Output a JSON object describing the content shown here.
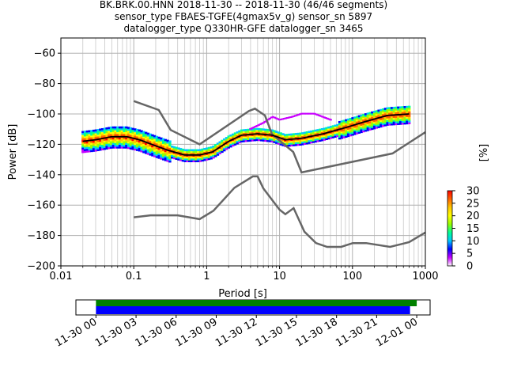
{
  "chart_data": [
    {
      "type": "heatmap",
      "title_lines": [
        "BK.BRK.00.HNN   2018-11-30 -- 2018-11-30  (46/46 segments)",
        "sensor_type FBAES-TGFE(4gmax5v_g) sensor_sn 5897",
        "datalogger_type Q330HR-GFE datalogger_sn 3465"
      ],
      "xlabel": "Period [s]",
      "ylabel": "Power [dB]",
      "xscale": "log",
      "xlim": [
        0.01,
        1000
      ],
      "ylim": [
        -200,
        -50
      ],
      "xticks": [
        {
          "value": 0.01,
          "label": "0.01"
        },
        {
          "value": 0.1,
          "label": "0.1"
        },
        {
          "value": 1,
          "label": "1"
        },
        {
          "value": 10,
          "label": "10"
        },
        {
          "value": 100,
          "label": "100"
        },
        {
          "value": 1000,
          "label": "1000"
        }
      ],
      "yticks": [
        {
          "value": -60,
          "label": "−60"
        },
        {
          "value": -80,
          "label": "−80"
        },
        {
          "value": -100,
          "label": "−100"
        },
        {
          "value": -120,
          "label": "−120"
        },
        {
          "value": -140,
          "label": "−140"
        },
        {
          "value": -160,
          "label": "−160"
        },
        {
          "value": -180,
          "label": "−180"
        },
        {
          "value": -200,
          "label": "−200"
        }
      ],
      "grid": true,
      "noise_model_high": [
        {
          "period": 0.1,
          "db": -91.5
        },
        {
          "period": 0.22,
          "db": -97.4
        },
        {
          "period": 0.32,
          "db": -110.5
        },
        {
          "period": 0.8,
          "db": -120
        },
        {
          "period": 3.8,
          "db": -98
        },
        {
          "period": 4.6,
          "db": -96.5
        },
        {
          "period": 6.3,
          "db": -101
        },
        {
          "period": 7.9,
          "db": -113.5
        },
        {
          "period": 15.4,
          "db": -125
        },
        {
          "period": 20,
          "db": -138.5
        },
        {
          "period": 354.8,
          "db": -126
        },
        {
          "period": 1000,
          "db": -112
        }
      ],
      "noise_model_low": [
        {
          "period": 0.1,
          "db": -168
        },
        {
          "period": 0.17,
          "db": -166.7
        },
        {
          "period": 0.4,
          "db": -166.7
        },
        {
          "period": 0.8,
          "db": -169.2
        },
        {
          "period": 1.24,
          "db": -163.7
        },
        {
          "period": 2.4,
          "db": -148.6
        },
        {
          "period": 4.3,
          "db": -141.1
        },
        {
          "period": 5,
          "db": -141.1
        },
        {
          "period": 6,
          "db": -149
        },
        {
          "period": 10,
          "db": -163
        },
        {
          "period": 12,
          "db": -166
        },
        {
          "period": 15.6,
          "db": -162
        },
        {
          "period": 21.9,
          "db": -177.5
        },
        {
          "period": 31.6,
          "db": -185
        },
        {
          "period": 45,
          "db": -187.5
        },
        {
          "period": 70,
          "db": -187.5
        },
        {
          "period": 101,
          "db": -185
        },
        {
          "period": 154,
          "db": -185
        },
        {
          "period": 328,
          "db": -187.5
        },
        {
          "period": 600,
          "db": -184.4
        },
        {
          "period": 1000,
          "db": -178
        }
      ],
      "mode_curve": [
        {
          "period": 0.02,
          "db": -118
        },
        {
          "period": 0.03,
          "db": -117
        },
        {
          "period": 0.05,
          "db": -115
        },
        {
          "period": 0.08,
          "db": -115
        },
        {
          "period": 0.12,
          "db": -117
        },
        {
          "period": 0.2,
          "db": -121
        },
        {
          "period": 0.3,
          "db": -124
        },
        {
          "period": 0.5,
          "db": -127
        },
        {
          "period": 0.8,
          "db": -127
        },
        {
          "period": 1.2,
          "db": -125
        },
        {
          "period": 2,
          "db": -118
        },
        {
          "period": 3,
          "db": -114
        },
        {
          "period": 5,
          "db": -113
        },
        {
          "period": 8,
          "db": -114
        },
        {
          "period": 12,
          "db": -117
        },
        {
          "period": 20,
          "db": -116
        },
        {
          "period": 40,
          "db": -113
        },
        {
          "period": 80,
          "db": -109
        },
        {
          "period": 150,
          "db": -105
        },
        {
          "period": 300,
          "db": -101
        },
        {
          "period": 600,
          "db": -100
        }
      ],
      "secondary_curve": [
        {
          "period": 4,
          "db": -110
        },
        {
          "period": 6,
          "db": -106
        },
        {
          "period": 8,
          "db": -102
        },
        {
          "period": 10,
          "db": -104
        },
        {
          "period": 15,
          "db": -102
        },
        {
          "period": 20,
          "db": -100
        },
        {
          "period": 30,
          "db": -100
        },
        {
          "period": 50,
          "db": -104
        }
      ],
      "colorbar": {
        "label": "[%]",
        "range": [
          0,
          30
        ],
        "ticks": [
          "0",
          "5",
          "10",
          "15",
          "20",
          "25",
          "30"
        ],
        "colors": [
          "#ffffff",
          "#c800ff",
          "#0000ff",
          "#00c8ff",
          "#00ff96",
          "#96ff00",
          "#ffff00",
          "#ffc800",
          "#ff6400",
          "#ff0000"
        ]
      }
    },
    {
      "type": "timeline",
      "tick_labels": [
        "11-30 00",
        "11-30 03",
        "11-30 06",
        "11-30 09",
        "11-30 12",
        "11-30 15",
        "11-30 18",
        "11-30 21",
        "12-01 00"
      ],
      "range_hours": [
        -1.5,
        25
      ],
      "green_bar_hours": [
        0,
        24
      ],
      "blue_bar_hours": [
        0,
        23.5
      ],
      "colors": {
        "green": "#008000",
        "blue": "#0000ff"
      }
    }
  ]
}
